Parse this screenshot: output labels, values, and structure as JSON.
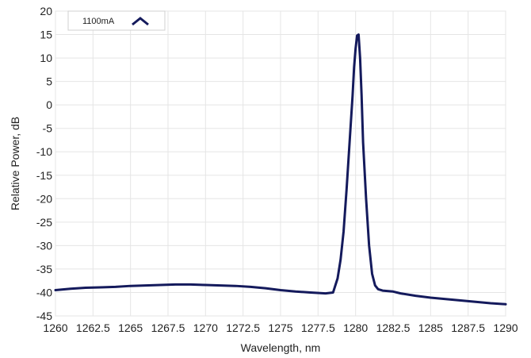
{
  "chart_data": {
    "type": "line",
    "title": "",
    "xlabel": "Wavelength, nm",
    "ylabel": "Relative Power, dB",
    "xlim": [
      1260,
      1290
    ],
    "ylim": [
      -45,
      20
    ],
    "grid": true,
    "legend_position": "top-left",
    "x_ticks": [
      1260,
      1262.5,
      1265,
      1267.5,
      1270,
      1272.5,
      1275,
      1277.5,
      1280,
      1282.5,
      1285,
      1287.5,
      1290
    ],
    "x_tick_labels": [
      "1260",
      "1262.5",
      "1265",
      "1267.5",
      "1270",
      "1272.5",
      "1275",
      "1277.5",
      "1280",
      "1282.5",
      "1285",
      "1287.5",
      "1290"
    ],
    "y_ticks": [
      20,
      15,
      10,
      5,
      0,
      -5,
      -10,
      -15,
      -20,
      -25,
      -30,
      -35,
      -40,
      -45
    ],
    "y_tick_labels": [
      "20",
      "15",
      "10",
      "5",
      "0",
      "-5",
      "-10",
      "-15",
      "-20",
      "-25",
      "-30",
      "-35",
      "-40",
      "-45"
    ],
    "series": [
      {
        "name": "1100mA",
        "color": "#141a5c",
        "x": [
          1260,
          1261,
          1262,
          1263,
          1264,
          1265,
          1266,
          1267,
          1268,
          1269,
          1270,
          1271,
          1272,
          1273,
          1274,
          1275,
          1276,
          1277,
          1278,
          1278.5,
          1278.8,
          1279.0,
          1279.2,
          1279.4,
          1279.6,
          1279.8,
          1279.9,
          1280.0,
          1280.1,
          1280.2,
          1280.3,
          1280.4,
          1280.5,
          1280.7,
          1280.9,
          1281.1,
          1281.3,
          1281.5,
          1281.8,
          1282.5,
          1283,
          1284,
          1285,
          1286,
          1287,
          1288,
          1289,
          1290
        ],
        "y": [
          -39.5,
          -39.2,
          -39.0,
          -38.9,
          -38.8,
          -38.6,
          -38.5,
          -38.4,
          -38.3,
          -38.3,
          -38.4,
          -38.5,
          -38.6,
          -38.8,
          -39.1,
          -39.5,
          -39.8,
          -40.0,
          -40.2,
          -40.0,
          -37.0,
          -33.0,
          -27.0,
          -18.0,
          -8.0,
          2.0,
          8.0,
          12.0,
          14.8,
          15.0,
          10.0,
          2.0,
          -8.0,
          -20.0,
          -30.0,
          -36.0,
          -38.5,
          -39.3,
          -39.6,
          -39.8,
          -40.2,
          -40.7,
          -41.1,
          -41.4,
          -41.7,
          -42.0,
          -42.3,
          -42.5
        ]
      }
    ]
  }
}
